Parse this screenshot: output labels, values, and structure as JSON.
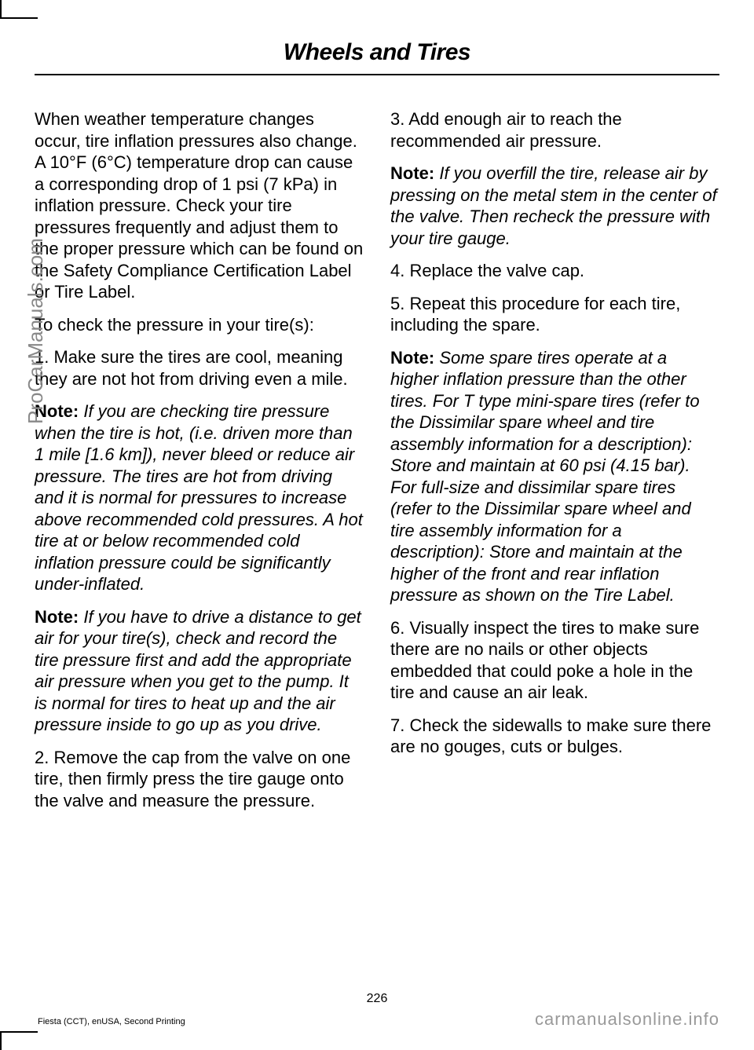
{
  "header": {
    "title": "Wheels and Tires"
  },
  "leftColumn": {
    "para1": "When weather temperature changes occur, tire inflation pressures also change. A 10°F (6°C) temperature drop can cause a corresponding drop of 1 psi (7 kPa) in inflation pressure. Check your tire pressures frequently and adjust them to the proper pressure which can be found on the Safety Compliance Certification Label or Tire Label.",
    "para2": "To check the pressure in your tire(s):",
    "para3": "1. Make sure the tires are cool, meaning they are not hot from driving even a mile.",
    "note1_label": "Note:",
    "note1_text": " If you are checking tire pressure when the tire is hot, (i.e. driven more than 1 mile [1.6 km]), never bleed or reduce air pressure. The tires are hot from driving and it is normal for pressures to increase above recommended cold pressures. A hot tire at or below recommended cold inflation pressure could be significantly under-inflated.",
    "note2_label": "Note:",
    "note2_text": " If you have to drive a distance to get air for your tire(s), check and record the tire pressure first and add the appropriate air pressure when you get to the pump. It is normal for tires to heat up and the air pressure inside to go up as you drive.",
    "para4": "2. Remove the cap from the valve on one tire, then firmly press the tire gauge onto the valve and measure the pressure."
  },
  "rightColumn": {
    "para1": "3. Add enough air to reach the recommended air pressure.",
    "note1_label": "Note:",
    "note1_text": " If you overfill the tire, release air by pressing on the metal stem in the center of the valve. Then recheck the pressure with your tire gauge.",
    "para2": "4. Replace the valve cap.",
    "para3": "5. Repeat this procedure for each tire, including the spare.",
    "note2_label": "Note:",
    "note2_text": " Some spare tires operate at a higher inflation pressure than the other tires. For T type mini-spare tires (refer to the Dissimilar spare wheel and tire assembly information for a description): Store and maintain at 60 psi (4.15 bar). For full-size and dissimilar spare tires (refer to the Dissimilar spare wheel and tire assembly information for a description): Store and maintain at the higher of the front and rear inflation pressure as shown on the Tire Label.",
    "para4": "6. Visually inspect the tires to make sure there are no nails or other objects embedded that could poke a hole in the tire and cause an air leak.",
    "para5": "7. Check the sidewalls to make sure there are no gouges, cuts or bulges."
  },
  "watermark": "ProCarManuals.com",
  "pageNumber": "226",
  "footerLeft": "Fiesta (CCT), enUSA, Second Printing",
  "footerRight": "carmanualsonline.info"
}
